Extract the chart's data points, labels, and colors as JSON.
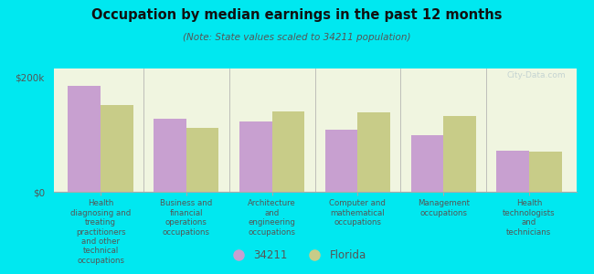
{
  "title": "Occupation by median earnings in the past 12 months",
  "subtitle": "(Note: State values scaled to 34211 population)",
  "categories": [
    "Health\ndiagnosing and\ntreating\npractitioners\nand other\ntechnical\noccupations",
    "Business and\nfinancial\noperations\noccupations",
    "Architecture\nand\nengineering\noccupations",
    "Computer and\nmathematical\noccupations",
    "Management\noccupations",
    "Health\ntechnologists\nand\ntechnicians"
  ],
  "values_34211": [
    185000,
    128000,
    122000,
    108000,
    98000,
    72000
  ],
  "values_florida": [
    152000,
    112000,
    140000,
    138000,
    132000,
    70000
  ],
  "color_34211": "#c8a0d0",
  "color_florida": "#c8cc88",
  "background_outer": "#00e8f0",
  "background_chart": "#f0f5e0",
  "ylim": [
    0,
    215000
  ],
  "ytick_labels": [
    "$0",
    "$200k"
  ],
  "ytick_vals": [
    0,
    200000
  ],
  "legend_label_34211": "34211",
  "legend_label_florida": "Florida",
  "watermark": "City-Data.com",
  "bar_width": 0.38
}
